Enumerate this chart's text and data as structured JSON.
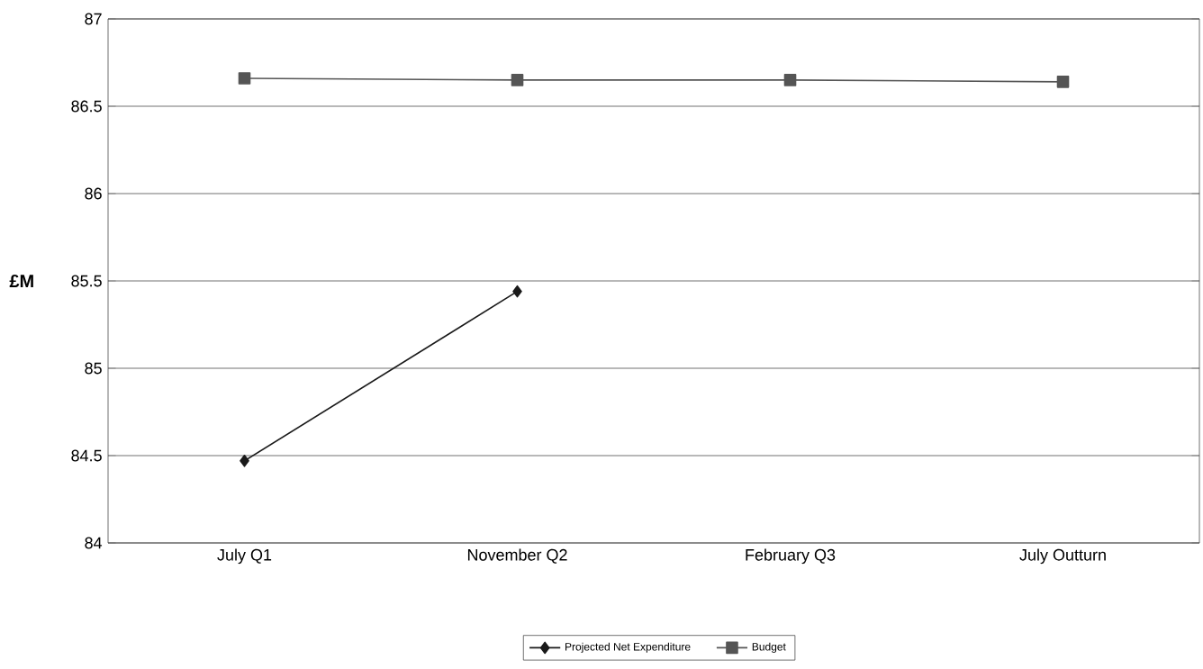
{
  "chart_data": {
    "type": "line",
    "ylabel": "£M",
    "categories": [
      "July Q1",
      "November Q2",
      "February Q3",
      "July Outturn"
    ],
    "series": [
      {
        "name": "Projected Net Expenditure",
        "color": "#1a1a1a",
        "marker": "diamond",
        "values": [
          84.47,
          85.44,
          null,
          null
        ]
      },
      {
        "name": "Budget",
        "color": "#555555",
        "marker": "square",
        "values": [
          86.66,
          86.65,
          86.65,
          86.64
        ]
      }
    ],
    "ylim": [
      84,
      87
    ],
    "yticks": [
      84,
      84.5,
      85,
      85.5,
      86,
      86.5,
      87
    ],
    "grid": "y",
    "legend": "bottom",
    "line_style": "solid"
  }
}
